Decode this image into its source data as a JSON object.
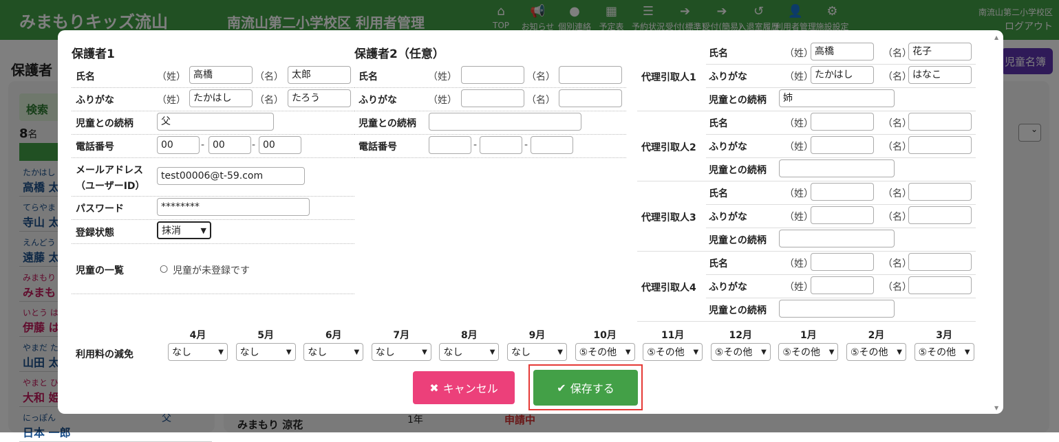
{
  "header": {
    "logo": "みまもりキッズ流山",
    "title": "南流山第二小学校区 利用者管理",
    "nav": [
      {
        "icon": "home-icon",
        "glyph": "⌂",
        "label": "TOP"
      },
      {
        "icon": "megaphone-icon",
        "glyph": "📢",
        "label": "お知らせ"
      },
      {
        "icon": "chat-icon",
        "glyph": "●",
        "label": "個別連絡"
      },
      {
        "icon": "calendar-icon",
        "glyph": "▦",
        "label": "予定表"
      },
      {
        "icon": "list-icon",
        "glyph": "☰",
        "label": "予約状況"
      },
      {
        "icon": "sign-in-icon",
        "glyph": "➔",
        "label": "受付(標準)"
      },
      {
        "icon": "sign-in-icon",
        "glyph": "➔",
        "label": "受付(簡易)"
      },
      {
        "icon": "history-icon",
        "glyph": "↺",
        "label": "入退室履歴"
      },
      {
        "icon": "user-edit-icon",
        "glyph": "👤",
        "label": "利用者管理"
      },
      {
        "icon": "gear-icon",
        "glyph": "⚙",
        "label": "施設設定"
      }
    ],
    "school": "南流山第二小学校区",
    "logout": "ログアウト"
  },
  "background": {
    "title": "保護者",
    "search": "検索",
    "count": "8",
    "count_unit": "名",
    "roster_button": "児童名簿",
    "list": [
      {
        "kana": "たかはし",
        "name": "高橋 太",
        "color": "blue"
      },
      {
        "kana": "てらやま",
        "name": "寺山 太",
        "color": "blue"
      },
      {
        "kana": "えんどう",
        "name": "遠藤 太",
        "color": "blue"
      },
      {
        "kana": "みまもり",
        "name": "みまもり",
        "color": "red"
      },
      {
        "kana": "いとう は",
        "name": "伊藤 は",
        "color": "red"
      },
      {
        "kana": "やまだ た",
        "name": "山田 太",
        "color": "blue"
      },
      {
        "kana": "やまと ひ",
        "name": "大和 姫",
        "color": "red"
      },
      {
        "kana": "にっぽん",
        "name": "日本 一郎",
        "color": "blue"
      }
    ],
    "row_child": "みまもり 涼花",
    "row_relation": "父",
    "row_grade": "1年",
    "row_status": "申請中"
  },
  "modal": {
    "g1": {
      "heading": "保護者1",
      "name_label": "氏名",
      "kana_label": "ふりがな",
      "sei": "（姓）",
      "mei": "（名）",
      "last": "高橋",
      "first": "太郎",
      "last_kana": "たかはし",
      "first_kana": "たろう",
      "relation_label": "児童との続柄",
      "relation": "父",
      "phone_label": "電話番号",
      "phone": [
        "00",
        "00",
        "00"
      ],
      "email_label": "メールアドレス",
      "email_label2": "（ユーザーID）",
      "email": "test00006@t-59.com",
      "password_label": "パスワード",
      "password": "********",
      "status_label": "登録状態",
      "status": "抹消",
      "children_label": "児童の一覧",
      "children_empty": "児童が未登録です"
    },
    "g2": {
      "heading": "保護者2（任意）",
      "name_label": "氏名",
      "kana_label": "ふりがな",
      "sei": "（姓）",
      "mei": "（名）",
      "relation_label": "児童との続柄",
      "phone_label": "電話番号"
    },
    "proxies": [
      {
        "label": "代理引取人1",
        "last": "高橋",
        "first": "花子",
        "last_kana": "たかはし",
        "first_kana": "はなこ",
        "relation": "姉"
      },
      {
        "label": "代理引取人2",
        "last": "",
        "first": "",
        "last_kana": "",
        "first_kana": "",
        "relation": ""
      },
      {
        "label": "代理引取人3",
        "last": "",
        "first": "",
        "last_kana": "",
        "first_kana": "",
        "relation": ""
      },
      {
        "label": "代理引取人4",
        "last": "",
        "first": "",
        "last_kana": "",
        "first_kana": "",
        "relation": ""
      }
    ],
    "proxy_labels": {
      "name": "氏名",
      "kana": "ふりがな",
      "relation": "児童との続柄",
      "sei": "（姓）",
      "mei": "（名）"
    },
    "fee": {
      "label": "利用料の減免",
      "months": [
        {
          "m": "4月",
          "v": "なし"
        },
        {
          "m": "5月",
          "v": "なし"
        },
        {
          "m": "6月",
          "v": "なし"
        },
        {
          "m": "7月",
          "v": "なし"
        },
        {
          "m": "8月",
          "v": "なし"
        },
        {
          "m": "9月",
          "v": "なし"
        },
        {
          "m": "10月",
          "v": "⑤その他"
        },
        {
          "m": "11月",
          "v": "⑤その他"
        },
        {
          "m": "12月",
          "v": "⑤その他"
        },
        {
          "m": "1月",
          "v": "⑤その他"
        },
        {
          "m": "2月",
          "v": "⑤その他"
        },
        {
          "m": "3月",
          "v": "⑤その他"
        }
      ]
    },
    "cancel": "キャンセル",
    "save": "保存する",
    "colors": {
      "cancel": "#ec407a",
      "save": "#43a047",
      "highlight": "#e53935",
      "header": "#43a047"
    }
  }
}
